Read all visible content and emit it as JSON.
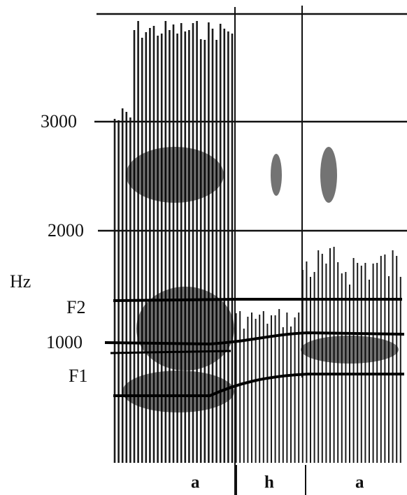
{
  "axis": {
    "unit": "Hz",
    "ticks": [
      "3000",
      "2000",
      "1000"
    ]
  },
  "formants": [
    "F2",
    "F1"
  ],
  "segments": [
    "a",
    "h",
    "a"
  ]
}
